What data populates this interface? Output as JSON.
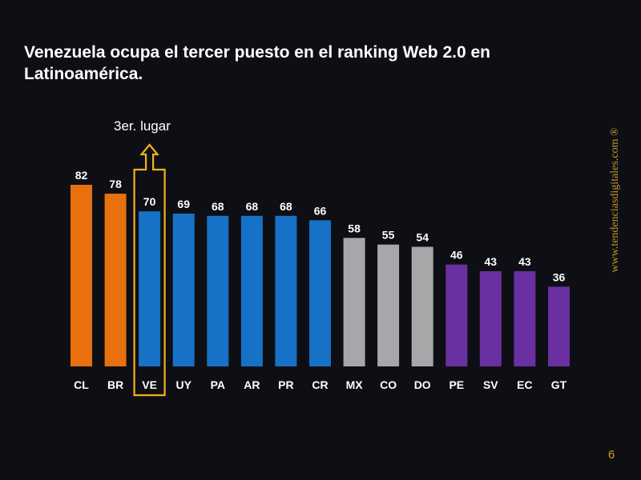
{
  "slide": {
    "title": "Venezuela ocupa el tercer puesto en el ranking Web 2.0 en Latinoamérica.",
    "annotation": "3er. lugar",
    "watermark": "www.tendenciasdigitales.com ®",
    "page_number": "6"
  },
  "chart_data": {
    "type": "bar",
    "title": "",
    "xlabel": "",
    "ylabel": "",
    "ylim": [
      0,
      82
    ],
    "grid": false,
    "legend": "none",
    "highlight_category": "VE",
    "categories": [
      "CL",
      "BR",
      "VE",
      "UY",
      "PA",
      "AR",
      "PR",
      "CR",
      "MX",
      "CO",
      "DO",
      "PE",
      "SV",
      "EC",
      "GT"
    ],
    "values": [
      82,
      78,
      70,
      69,
      68,
      68,
      68,
      66,
      58,
      55,
      54,
      46,
      43,
      43,
      36
    ],
    "colors": [
      "#e8700f",
      "#e8700f",
      "#1771c7",
      "#1771c7",
      "#1771c7",
      "#1771c7",
      "#1771c7",
      "#1771c7",
      "#a7a7a9",
      "#a7a7a9",
      "#a7a7a9",
      "#6a2fa0",
      "#6a2fa0",
      "#6a2fa0",
      "#6a2fa0"
    ],
    "highlight_color": "#f2b21b",
    "label_color": "#ffffff"
  }
}
